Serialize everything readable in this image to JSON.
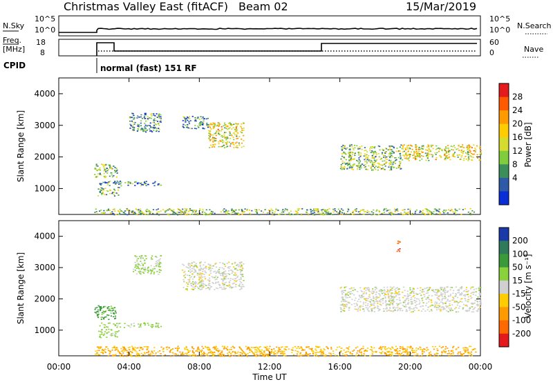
{
  "header": {
    "title": "Christmas Valley East (fitACF)",
    "beam": "Beam 02",
    "date": "15/Mar/2019"
  },
  "status": {
    "nsky_label": "N.Sky",
    "nsearch_label": "N.Search",
    "freq_label_line1": "Freq.",
    "freq_label_line2": "[MHz]",
    "nave_label": "Nave",
    "cpid_label": "CPID",
    "cpid_value": "normal (fast) 151 RF",
    "noise_ticks_left": [
      "10^5",
      "10^0"
    ],
    "noise_ticks_right": [
      "10^5",
      "10^0"
    ],
    "freq_ticks_left": [
      "18",
      "8"
    ],
    "nave_ticks_right": [
      "60",
      "0"
    ]
  },
  "colorbars": {
    "power": {
      "label": "Power [dB]",
      "ticks": [
        "28",
        "24",
        "20",
        "16",
        "12",
        "8",
        "4"
      ],
      "colors": [
        "#e41a1c",
        "#ff5a00",
        "#ff9a00",
        "#ffcc00",
        "#d6dc2e",
        "#7fcc3c",
        "#3c8f5a",
        "#2e5aa8",
        "#0a2ed6"
      ]
    },
    "velocity": {
      "label": "Velocity [m s⁻¹]",
      "ticks": [
        "200",
        "100",
        "50",
        "15",
        "-15",
        "-50",
        "-100",
        "-200"
      ],
      "colors": [
        "#1a3aa8",
        "#2f7a5a",
        "#3a9a3a",
        "#8ad23c",
        "#d0d0d0",
        "#ffcc00",
        "#ff9a00",
        "#ff6a00",
        "#e41a1c"
      ]
    }
  },
  "axes": {
    "ylabel": "Slant Range [km]",
    "xlabel": "Time UT",
    "yticks": [
      "1000",
      "2000",
      "3000",
      "4000"
    ],
    "xticks": [
      "00:00",
      "04:00",
      "08:00",
      "12:00",
      "16:00",
      "20:00",
      "00:00"
    ]
  },
  "chart_data": [
    {
      "type": "heatmap",
      "name": "power",
      "x_range_hours": [
        0,
        24
      ],
      "y_range_km": [
        180,
        4500
      ],
      "regions": [
        {
          "t0": 2.0,
          "t1": 3.3,
          "r0": 1350,
          "r1": 1800,
          "value": 12
        },
        {
          "t0": 2.3,
          "t1": 5.8,
          "r0": 1100,
          "r1": 1250,
          "value": 8
        },
        {
          "t0": 2.2,
          "t1": 3.4,
          "r0": 780,
          "r1": 1050,
          "value": 12
        },
        {
          "t0": 4.0,
          "t1": 5.8,
          "r0": 2800,
          "r1": 3400,
          "value": 8
        },
        {
          "t0": 7.0,
          "t1": 8.5,
          "r0": 2900,
          "r1": 3300,
          "value": 8
        },
        {
          "t0": 8.5,
          "t1": 10.5,
          "r0": 2300,
          "r1": 3100,
          "value": 16
        },
        {
          "t0": 16.0,
          "t1": 19.5,
          "r0": 1600,
          "r1": 2400,
          "value": 12
        },
        {
          "t0": 19.5,
          "t1": 24.0,
          "r0": 1900,
          "r1": 2400,
          "value": 16
        },
        {
          "t0": 2.0,
          "t1": 23.7,
          "r0": 180,
          "r1": 380,
          "value": 12
        }
      ]
    },
    {
      "type": "heatmap",
      "name": "velocity",
      "x_range_hours": [
        0,
        24
      ],
      "y_range_km": [
        180,
        4500
      ],
      "regions": [
        {
          "t0": 2.0,
          "t1": 3.3,
          "r0": 1350,
          "r1": 1800,
          "value": 60
        },
        {
          "t0": 2.3,
          "t1": 5.8,
          "r0": 1100,
          "r1": 1250,
          "value": 25
        },
        {
          "t0": 2.2,
          "t1": 3.4,
          "r0": 780,
          "r1": 1050,
          "value": 30
        },
        {
          "t0": 4.2,
          "t1": 5.8,
          "r0": 2800,
          "r1": 3400,
          "value": 20
        },
        {
          "t0": 7.0,
          "t1": 10.5,
          "r0": 2300,
          "r1": 3200,
          "value": 0
        },
        {
          "t0": 16.0,
          "t1": 24.0,
          "r0": 1600,
          "r1": 2400,
          "value": 0
        },
        {
          "t0": 19.2,
          "t1": 19.4,
          "r0": 3500,
          "r1": 3900,
          "value": -200
        },
        {
          "t0": 2.0,
          "t1": 23.7,
          "r0": 180,
          "r1": 500,
          "value": -50
        }
      ]
    }
  ]
}
